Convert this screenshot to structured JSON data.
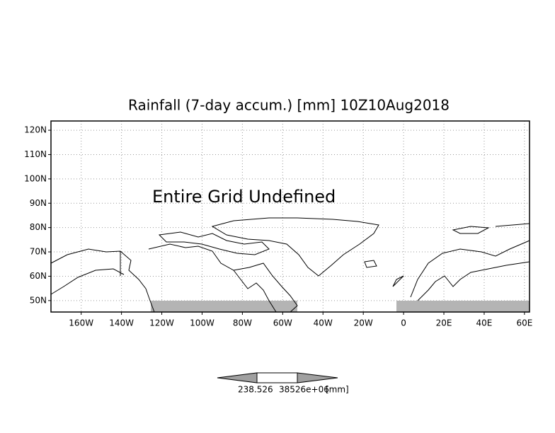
{
  "chart_data": {
    "type": "map",
    "title": "Rainfall (7-day accum.) [mm] 10Z10Aug2018",
    "annotation": "Entire Grid Undefined",
    "xlim": [
      -175,
      62.5
    ],
    "ylim": [
      45.3,
      123.8
    ],
    "xticks": [
      {
        "value": -160,
        "label": "160W"
      },
      {
        "value": -140,
        "label": "140W"
      },
      {
        "value": -120,
        "label": "120W"
      },
      {
        "value": -100,
        "label": "100W"
      },
      {
        "value": -80,
        "label": "80W"
      },
      {
        "value": -60,
        "label": "60W"
      },
      {
        "value": -40,
        "label": "40W"
      },
      {
        "value": -20,
        "label": "20W"
      },
      0,
      {
        "value": 20,
        "label": "20E"
      },
      {
        "value": 40,
        "label": "40E"
      },
      {
        "value": 60,
        "label": "60E"
      }
    ],
    "yticks": [
      {
        "value": 50,
        "label": "50N"
      },
      {
        "value": 60,
        "label": "60N"
      },
      {
        "value": 70,
        "label": "70N"
      },
      {
        "value": 80,
        "label": "80N"
      },
      {
        "value": 90,
        "label": "90N"
      },
      {
        "value": 100,
        "label": "100N"
      },
      {
        "value": 110,
        "label": "110N"
      },
      {
        "value": 120,
        "label": "120N"
      }
    ],
    "grid": true,
    "colorbar_labels": [
      "238.526",
      "38526e+06",
      "[mm]"
    ]
  }
}
